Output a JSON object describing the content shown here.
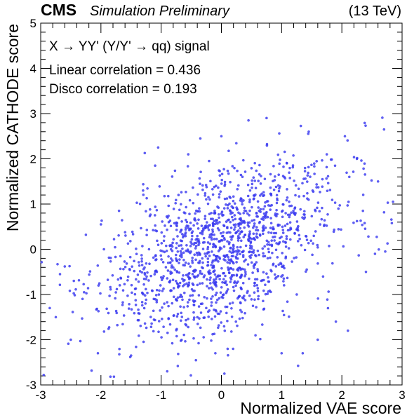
{
  "header": {
    "experiment": "CMS",
    "status": "Simulation Preliminary",
    "energy": "(13 TeV)"
  },
  "annotations": {
    "signal": "X → YY' (Y/Y' → qq) signal",
    "linear": "Linear correlation = 0.436",
    "disco": "Disco correlation = 0.193"
  },
  "chart_data": {
    "type": "scatter",
    "title": "",
    "xlabel": "Normalized VAE score",
    "ylabel": "Normalized CATHODE score",
    "xlim": [
      -3,
      3
    ],
    "ylim": [
      -3,
      5
    ],
    "x_ticks": [
      "-3",
      "-2",
      "-1",
      "0",
      "1",
      "2",
      "3"
    ],
    "y_ticks": [
      "-3",
      "-2",
      "-1",
      "0",
      "1",
      "2",
      "3",
      "4",
      "5"
    ],
    "marker_color": "#3a3af0",
    "n_points": 1500,
    "linear_correlation": 0.436,
    "disco_correlation": 0.193,
    "sampled_points": [
      [
        -2.95,
        -2.78
      ],
      [
        -2.85,
        -1.3
      ],
      [
        -2.75,
        -1.5
      ],
      [
        -2.72,
        -0.33
      ],
      [
        -2.68,
        -0.55
      ],
      [
        -2.6,
        -0.38
      ],
      [
        -2.5,
        -2.0
      ],
      [
        -2.45,
        -0.7
      ],
      [
        -2.28,
        -0.95
      ],
      [
        -2.25,
        0.32
      ],
      [
        -2.05,
        -2.3
      ],
      [
        -2.0,
        0.55
      ],
      [
        -1.95,
        0.0
      ],
      [
        -1.7,
        0.85
      ],
      [
        -1.5,
        -2.35
      ],
      [
        -1.3,
        1.3
      ],
      [
        -1.1,
        1.85
      ],
      [
        -1.05,
        2.25
      ],
      [
        -0.9,
        -2.7
      ],
      [
        -0.55,
        2.1
      ],
      [
        -0.35,
        2.45
      ],
      [
        -0.1,
        -2.3
      ],
      [
        0.0,
        2.5
      ],
      [
        0.05,
        -2.75
      ],
      [
        0.45,
        2.85
      ],
      [
        0.75,
        2.9
      ],
      [
        1.0,
        -2.3
      ],
      [
        1.35,
        -2.3
      ],
      [
        1.45,
        2.6
      ],
      [
        1.75,
        2.1
      ],
      [
        2.05,
        2.5
      ],
      [
        2.25,
        2.0
      ],
      [
        2.35,
        0.85
      ],
      [
        2.55,
        -0.1
      ],
      [
        2.6,
        1.5
      ],
      [
        2.7,
        2.65
      ],
      [
        2.72,
        -0.05
      ],
      [
        2.85,
        1.05
      ],
      [
        2.1,
        -1.8
      ],
      [
        1.6,
        -2.0
      ],
      [
        1.9,
        -1.6
      ],
      [
        2.4,
        -0.5
      ]
    ]
  }
}
